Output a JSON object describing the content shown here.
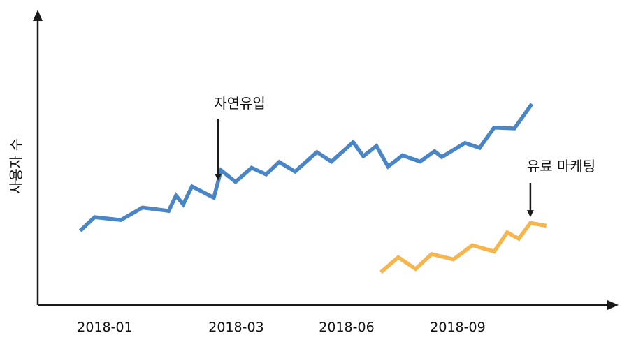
{
  "chart_data": {
    "type": "line",
    "ylabel": "사용자 수",
    "xlabel": "",
    "x_ticks": [
      "2018-01",
      "2018-03",
      "2018-06",
      "2018-09"
    ],
    "grid": false,
    "colors": {
      "organic": "#4a86c6",
      "paid": "#f6b54d",
      "axis": "#1a1a1a"
    },
    "series": [
      {
        "key": "organic",
        "x": [
          "2017-12-15",
          "2017-12-25",
          "2018-01-12",
          "2018-01-27",
          "2018-02-14",
          "2018-02-19",
          "2018-02-24",
          "2018-03-02",
          "2018-03-17",
          "2018-03-22",
          "2018-04-01",
          "2018-04-12",
          "2018-04-22",
          "2018-05-01",
          "2018-05-12",
          "2018-05-27",
          "2018-06-06",
          "2018-06-21",
          "2018-06-28",
          "2018-07-07",
          "2018-07-15",
          "2018-07-25",
          "2018-08-06",
          "2018-08-16",
          "2018-08-21",
          "2018-09-06",
          "2018-09-16",
          "2018-09-26",
          "2018-10-10",
          "2018-10-22"
        ],
        "values": [
          100,
          133,
          126,
          156,
          148,
          185,
          164,
          207,
          180,
          246,
          218,
          252,
          236,
          266,
          243,
          290,
          267,
          314,
          280,
          305,
          255,
          282,
          267,
          292,
          278,
          312,
          300,
          349,
          347,
          406
        ]
      },
      {
        "key": "paid",
        "x": [
          "2018-07-10",
          "2018-07-22",
          "2018-08-03",
          "2018-08-14",
          "2018-08-29",
          "2018-09-11",
          "2018-09-26",
          "2018-10-05",
          "2018-10-13",
          "2018-10-21",
          "2018-11-01"
        ],
        "values": [
          0,
          36,
          8,
          44,
          31,
          65,
          50,
          96,
          81,
          119,
          112
        ]
      }
    ],
    "annotations": [
      {
        "text": "자연유입",
        "series": "organic",
        "x": "2018-03-20",
        "y": 221
      },
      {
        "text": "유료 마케팅",
        "series": "paid",
        "x": "2018-10-21",
        "y": 133
      }
    ]
  }
}
